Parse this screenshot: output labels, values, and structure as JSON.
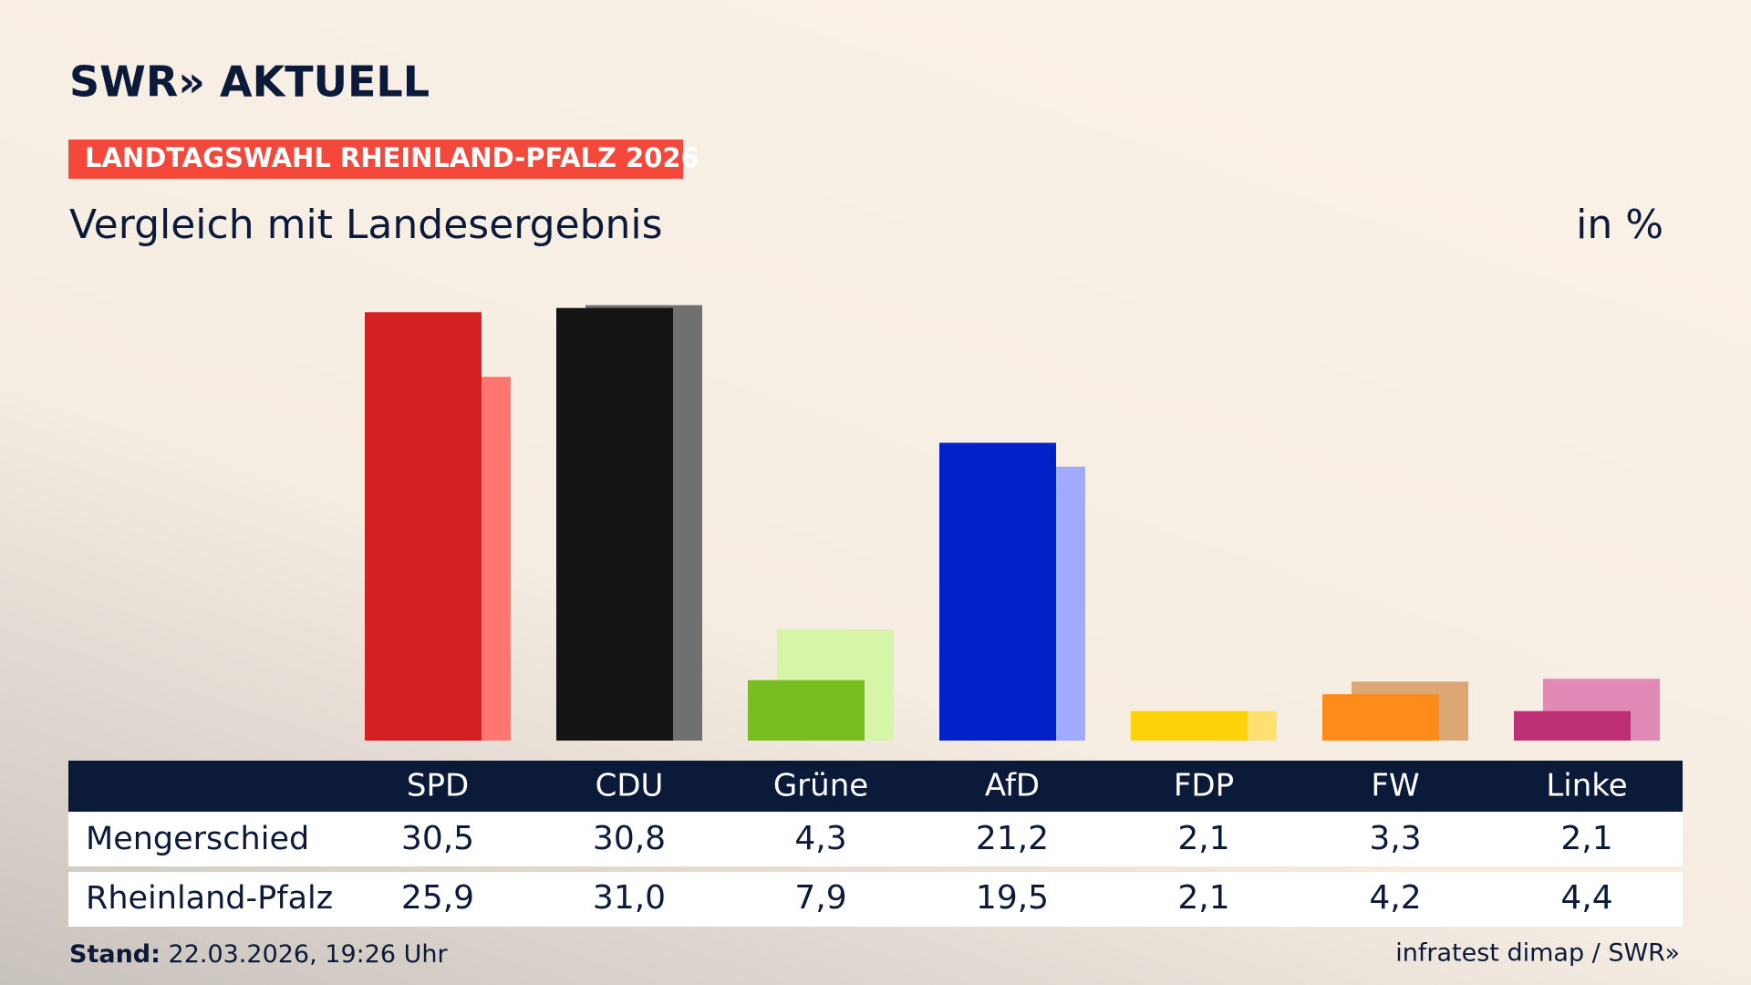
{
  "chart_data": {
    "type": "bar",
    "logo": "SWR» AKTUELL",
    "badge": "LANDTAGSWAHL RHEINLAND-PFALZ 2026",
    "title": "Vergleich mit Landesergebnis",
    "unit_label": "in %",
    "categories": [
      "SPD",
      "CDU",
      "Grüne",
      "AfD",
      "FDP",
      "FW",
      "Linke"
    ],
    "series": [
      {
        "name": "Mengerschied",
        "colors": [
          "#d42020",
          "#141414",
          "#78be1e",
          "#0020c8",
          "#ffd20a",
          "#ff8c1a",
          "#be3075"
        ],
        "values": [
          30.5,
          30.8,
          4.3,
          21.2,
          2.1,
          3.3,
          2.1
        ],
        "value_labels": [
          "30,5",
          "30,8",
          "4,3",
          "21,2",
          "2,1",
          "3,3",
          "2,1"
        ]
      },
      {
        "name": "Rheinland-Pfalz",
        "colors": [
          "#ff7570",
          "#707070",
          "#d6f5a8",
          "#a0aaff",
          "#ffe070",
          "#dba874",
          "#e08ab5"
        ],
        "values": [
          25.9,
          31.0,
          7.9,
          19.5,
          2.1,
          4.2,
          4.4
        ],
        "value_labels": [
          "25,9",
          "31,0",
          "7,9",
          "19,5",
          "2,1",
          "4,2",
          "4,4"
        ]
      }
    ],
    "footer_label": "Stand:",
    "footer_date": "22.03.2026, 19:26 Uhr",
    "source": "infratest dimap / SWR»"
  }
}
